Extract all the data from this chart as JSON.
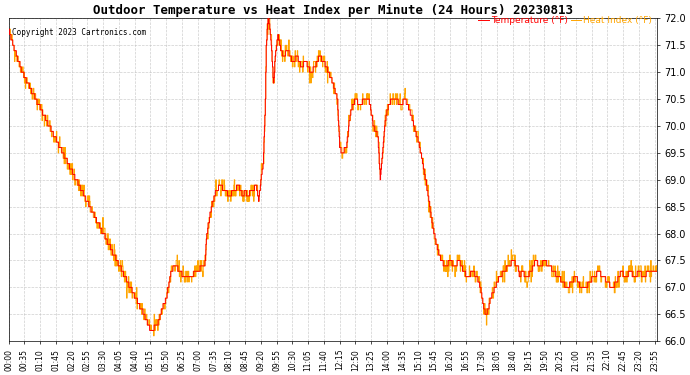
{
  "title": "Outdoor Temperature vs Heat Index per Minute (24 Hours) 20230813",
  "copyright_text": "Copyright 2023 Cartronics.com",
  "legend_labels": [
    "Heat Index (°F)",
    "Temperature (°F)"
  ],
  "legend_colors": [
    "red",
    "orange"
  ],
  "background_color": "#ffffff",
  "grid_color": "#bbbbbb",
  "ymin": 66.0,
  "ymax": 72.0,
  "ytick_step": 0.5,
  "line1_color": "red",
  "line2_color": "orange",
  "x_tick_labels": [
    "00:00",
    "00:35",
    "01:10",
    "01:45",
    "02:20",
    "02:55",
    "03:30",
    "04:05",
    "04:40",
    "05:15",
    "05:50",
    "06:25",
    "07:00",
    "07:35",
    "08:10",
    "08:45",
    "09:20",
    "09:55",
    "10:30",
    "11:05",
    "11:40",
    "12:15",
    "12:50",
    "13:25",
    "14:00",
    "14:35",
    "15:10",
    "15:45",
    "16:20",
    "16:55",
    "17:30",
    "18:05",
    "18:40",
    "19:15",
    "19:50",
    "20:25",
    "21:00",
    "21:35",
    "22:10",
    "22:45",
    "23:20",
    "23:55"
  ],
  "num_minutes": 1440,
  "seed": 42,
  "figwidth": 6.9,
  "figheight": 3.75,
  "dpi": 100
}
